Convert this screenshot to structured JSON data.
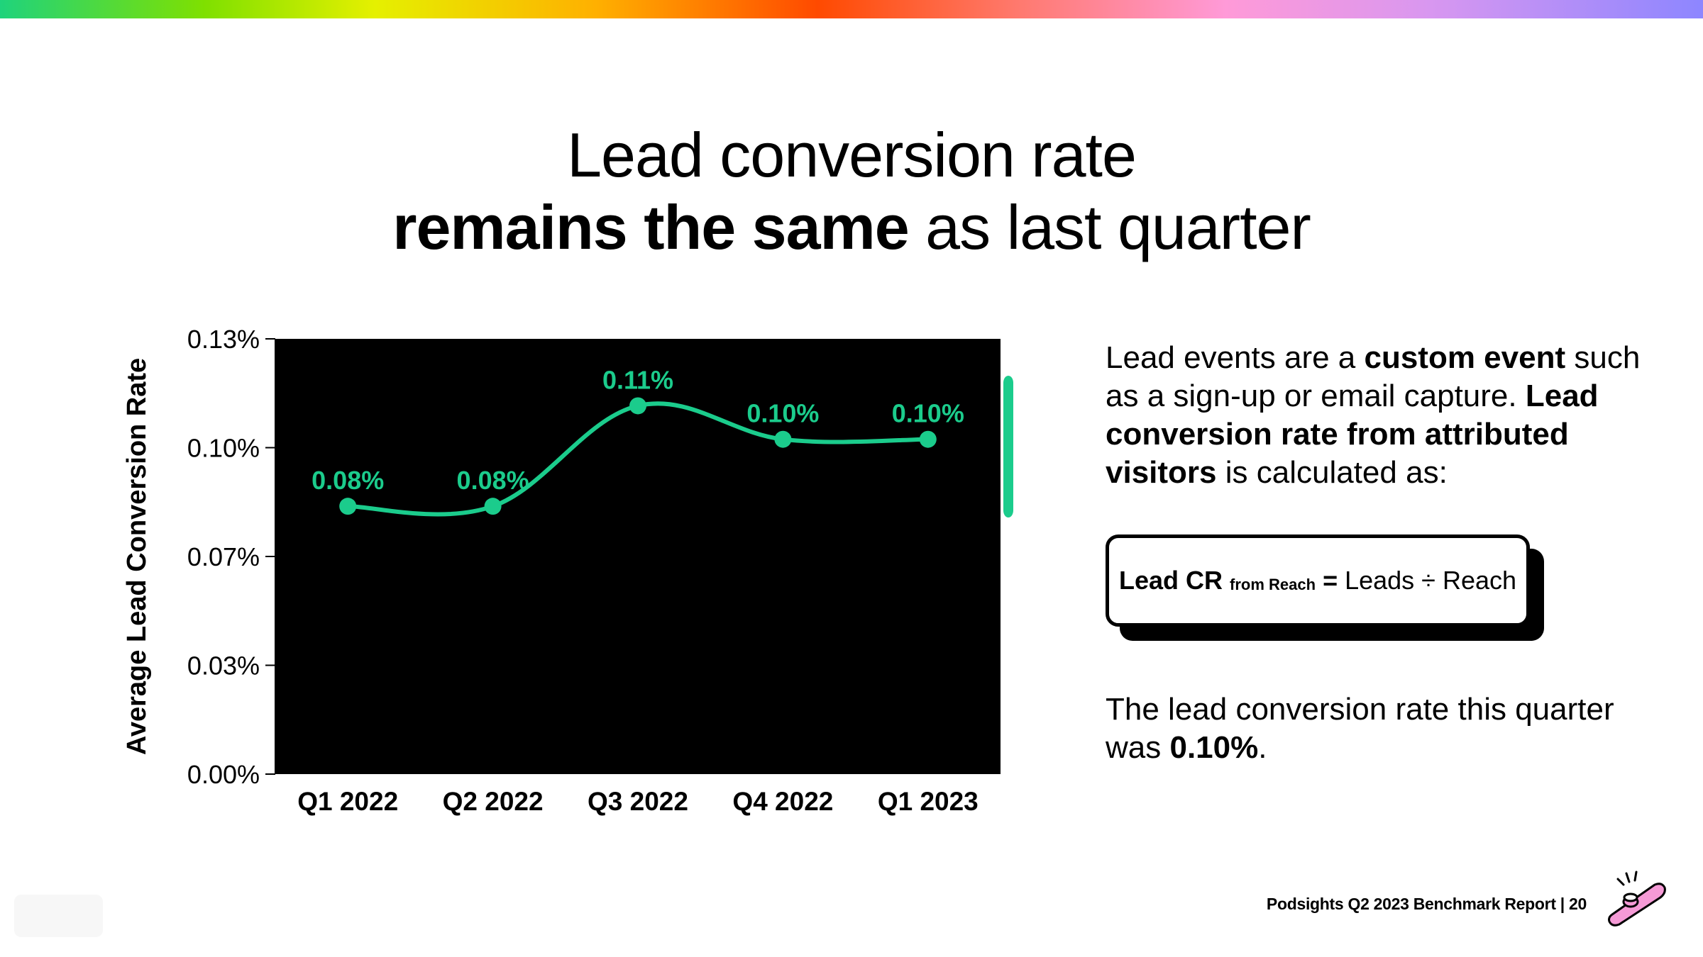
{
  "title": {
    "line1": "Lead conversion rate",
    "line2_bold": "remains the same",
    "line2_rest": "as last quarter"
  },
  "colors": {
    "accent": "#1bcc8c",
    "plot_bg": "#000000",
    "text": "#000000"
  },
  "chart_data": {
    "type": "line",
    "categories": [
      "Q1 2022",
      "Q2 2022",
      "Q3 2022",
      "Q4 2022",
      "Q1 2023"
    ],
    "series": [
      {
        "values": [
          0.08,
          0.08,
          0.11,
          0.1,
          0.1
        ],
        "data_labels": [
          "0.08%",
          "0.08%",
          "0.11%",
          "0.10%",
          "0.10%"
        ]
      }
    ],
    "xlabel": "",
    "ylabel": "Average Lead Conversion Rate",
    "yticks": [
      "0.00%",
      "0.03%",
      "0.07%",
      "0.10%",
      "0.13%"
    ],
    "ylim": [
      0,
      0.13
    ],
    "grid": false,
    "legend": "none"
  },
  "right_panel": {
    "p1_a": "Lead events are a ",
    "p1_b": "custom event",
    "p1_c": " such as a sign-up or email capture. ",
    "p1_d": "Lead conversion rate from attributed visitors",
    "p1_e": " is calculated as:",
    "formula_lhs": "Lead CR",
    "formula_sub": "from Reach",
    "formula_eq": "=",
    "formula_rhs": "Leads ÷ Reach",
    "p2_a": "The lead conversion rate this quarter was ",
    "p2_b": "0.10%",
    "p2_c": "."
  },
  "footer": {
    "text": "Podsights Q2 2023 Benchmark Report | 20",
    "icon": "kazoo-icon"
  }
}
